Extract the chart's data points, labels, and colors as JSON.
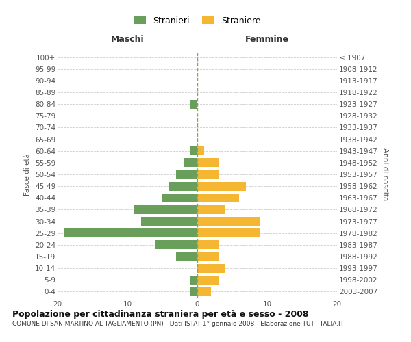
{
  "age_groups": [
    "100+",
    "95-99",
    "90-94",
    "85-89",
    "80-84",
    "75-79",
    "70-74",
    "65-69",
    "60-64",
    "55-59",
    "50-54",
    "45-49",
    "40-44",
    "35-39",
    "30-34",
    "25-29",
    "20-24",
    "15-19",
    "10-14",
    "5-9",
    "0-4"
  ],
  "birth_years": [
    "≤ 1907",
    "1908-1912",
    "1913-1917",
    "1918-1922",
    "1923-1927",
    "1928-1932",
    "1933-1937",
    "1938-1942",
    "1943-1947",
    "1948-1952",
    "1953-1957",
    "1958-1962",
    "1963-1967",
    "1968-1972",
    "1973-1977",
    "1978-1982",
    "1983-1987",
    "1988-1992",
    "1993-1997",
    "1998-2002",
    "2003-2007"
  ],
  "males": [
    0,
    0,
    0,
    0,
    1,
    0,
    0,
    0,
    1,
    2,
    3,
    4,
    5,
    9,
    8,
    19,
    6,
    3,
    0,
    1,
    1
  ],
  "females": [
    0,
    0,
    0,
    0,
    0,
    0,
    0,
    0,
    1,
    3,
    3,
    7,
    6,
    4,
    9,
    9,
    3,
    3,
    4,
    3,
    2
  ],
  "male_color": "#6a9f5b",
  "female_color": "#f5b731",
  "center_line_color": "#999966",
  "grid_color": "#cccccc",
  "title": "Popolazione per cittadinanza straniera per età e sesso - 2008",
  "subtitle": "COMUNE DI SAN MARTINO AL TAGLIAMENTO (PN) - Dati ISTAT 1° gennaio 2008 - Elaborazione TUTTITALIA.IT",
  "label_maschi": "Maschi",
  "label_femmine": "Femmine",
  "ylabel_left": "Fasce di età",
  "ylabel_right": "Anni di nascita",
  "legend_male": "Stranieri",
  "legend_female": "Straniere",
  "xlim": 20,
  "background_color": "#ffffff",
  "bar_height": 0.75,
  "title_fontsize": 9,
  "subtitle_fontsize": 6.5,
  "tick_fontsize": 7.5,
  "header_fontsize": 9
}
